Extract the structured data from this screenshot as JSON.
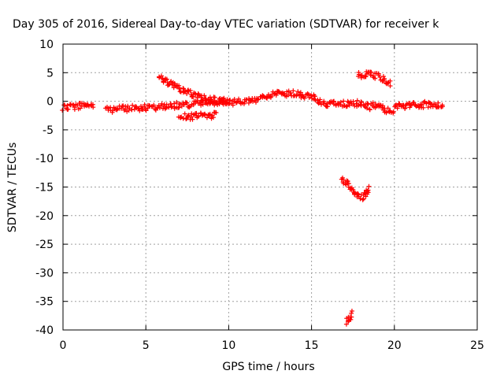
{
  "chart_data": {
    "type": "scatter",
    "title": "Day 305 of 2016, Sidereal Day-to-day VTEC variation (SDTVAR) for receiver k",
    "xlabel": "GPS time / hours",
    "ylabel": "SDTVAR / TECUs",
    "xlim": [
      0,
      25
    ],
    "ylim": [
      -40,
      10
    ],
    "xticks": [
      0,
      5,
      10,
      15,
      20,
      25
    ],
    "yticks": [
      10,
      5,
      0,
      -5,
      -10,
      -15,
      -20,
      -25,
      -30,
      -35,
      -40
    ],
    "grid": true,
    "marker": "+",
    "color": "#ff0000",
    "series": [
      {
        "x": [
          0,
          0.5,
          1,
          1.5,
          1.9
        ],
        "y": [
          -1.2,
          -1.0,
          -0.8,
          -0.5,
          -1.2
        ]
      },
      {
        "x": [
          2.6,
          3.5,
          4.5,
          5.5,
          6.5,
          7.5,
          8.5,
          9.5,
          10,
          11,
          12,
          12.5,
          13,
          13.5,
          14,
          14.5,
          15,
          15.5,
          16,
          16.5,
          17,
          17.5,
          18
        ],
        "y": [
          -1.5,
          -1.3,
          -1.2,
          -1.1,
          -0.8,
          -0.6,
          -0.3,
          0,
          -0.2,
          0,
          0.5,
          1.0,
          1.5,
          1.2,
          1.5,
          1.0,
          1.0,
          0,
          -0.5,
          -0.2,
          -0.5,
          -0.3,
          -0.5
        ]
      },
      {
        "x": [
          5.8,
          6.5,
          7.5,
          8.5,
          9.5,
          10
        ],
        "y": [
          4.3,
          3.0,
          1.5,
          0.5,
          0,
          0
        ]
      },
      {
        "x": [
          7,
          7.5,
          8,
          8.5,
          9,
          9.3
        ],
        "y": [
          -2.8,
          -2.7,
          -2.6,
          -2.5,
          -2.5,
          -2.0
        ]
      },
      {
        "x": [
          18,
          18.5,
          19,
          19.5,
          20
        ],
        "y": [
          -0.5,
          -1.0,
          -0.5,
          -1.5,
          -2.0
        ]
      },
      {
        "x": [
          20,
          21,
          22,
          23
        ],
        "y": [
          -1.0,
          -0.8,
          -0.5,
          -0.5
        ]
      },
      {
        "x": [
          17.8,
          18.3,
          18.8,
          19.3,
          19.8
        ],
        "y": [
          4.5,
          4.8,
          4.5,
          4.0,
          3.0
        ]
      },
      {
        "x": [
          16.8,
          17.2,
          17.6,
          17.9,
          18.2,
          18.5
        ],
        "y": [
          -13.5,
          -14.5,
          -15.8,
          -17.0,
          -16.5,
          -15.0
        ]
      },
      {
        "x": [
          17.1,
          17.3,
          17.5
        ],
        "y": [
          -38.5,
          -37.8,
          -37.0
        ]
      }
    ]
  }
}
